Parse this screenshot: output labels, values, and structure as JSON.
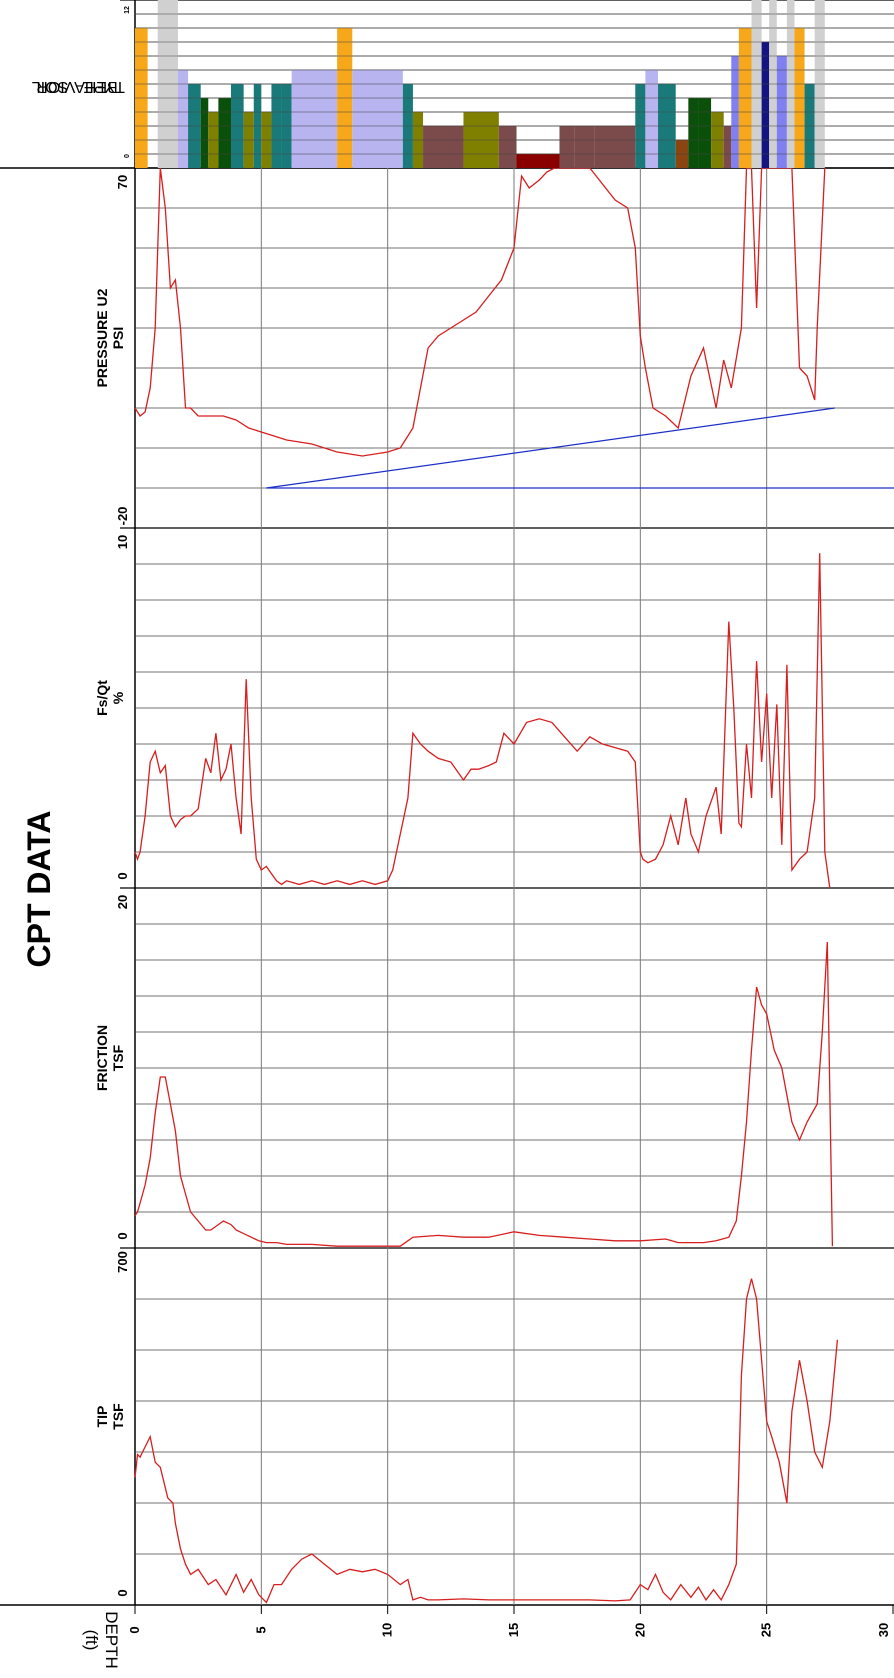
{
  "page_title": "CPT DATA",
  "depth_axis": {
    "label": "DEPTH",
    "unit": "(ft)",
    "min": 0,
    "max": 30,
    "ticks": [
      0,
      5,
      10,
      15,
      20,
      25,
      30
    ]
  },
  "colors": {
    "data_line": "#d81e1e",
    "water_line": "#1c2fc8",
    "grid_major": "#7a7a7a",
    "grid_minor": "#444444"
  },
  "sbt_colors": {
    "1": "#8a0000",
    "2": "#8b4513",
    "3": "#7b4a4a",
    "4": "#808000",
    "5": "#0a4f0a",
    "6": "#1a7a7a",
    "7": "#b8b4f0",
    "8": "#8080f0",
    "9": "#141480",
    "10": "#f7a81a",
    "11": "#9c9c9c",
    "12": "#d0d0d0"
  },
  "chart_data": [
    {
      "type": "line",
      "title": "TIP",
      "unit": "TSF",
      "xlim": [
        0,
        700
      ],
      "tick_min": "0",
      "tick_max": "700",
      "grid_divisions": 7,
      "series": [
        {
          "depth": [
            0.0,
            0.1,
            0.2,
            0.4,
            0.6,
            0.8,
            1.0,
            1.3,
            1.5,
            1.6,
            1.8,
            2.0,
            2.2,
            2.5,
            2.9,
            3.2,
            3.6,
            4.0,
            4.3,
            4.6,
            4.9,
            5.2,
            5.5,
            5.8,
            6.2,
            6.6,
            7.0,
            7.5,
            8.0,
            8.5,
            9.0,
            9.5,
            10.0,
            10.5,
            10.8,
            11.0,
            11.3,
            11.6,
            12.0,
            13.0,
            14.0,
            15.0,
            16.0,
            17.0,
            18.0,
            19.0,
            19.6,
            20.0,
            20.3,
            20.6,
            20.9,
            21.2,
            21.6,
            22.0,
            22.3,
            22.6,
            22.9,
            23.2,
            23.5,
            23.8,
            24.0,
            24.2,
            24.4,
            24.6,
            24.8,
            25.0,
            25.2,
            25.5,
            25.8,
            26.0,
            26.3,
            26.6,
            26.9,
            27.2,
            27.5,
            27.8
          ],
          "values": [
            250,
            295,
            290,
            310,
            330,
            280,
            270,
            210,
            200,
            160,
            110,
            80,
            60,
            70,
            40,
            50,
            20,
            60,
            25,
            50,
            20,
            5,
            40,
            40,
            70,
            90,
            100,
            80,
            60,
            70,
            65,
            70,
            60,
            40,
            50,
            10,
            15,
            10,
            10,
            12,
            10,
            10,
            10,
            10,
            10,
            8,
            10,
            40,
            30,
            60,
            25,
            10,
            40,
            15,
            35,
            10,
            30,
            10,
            40,
            80,
            450,
            600,
            640,
            600,
            480,
            360,
            330,
            280,
            200,
            380,
            480,
            400,
            300,
            270,
            360,
            520
          ]
        }
      ]
    },
    {
      "type": "line",
      "title": "FRICTION",
      "unit": "TSF",
      "xlim": [
        0,
        20
      ],
      "tick_min": "0",
      "tick_max": "20",
      "grid_divisions": 10,
      "series": [
        {
          "depth": [
            0.0,
            0.1,
            0.2,
            0.4,
            0.6,
            0.8,
            1.0,
            1.2,
            1.4,
            1.6,
            1.8,
            2.0,
            2.2,
            2.5,
            2.8,
            3.0,
            3.2,
            3.5,
            3.8,
            4.0,
            4.3,
            4.6,
            4.9,
            5.2,
            5.6,
            6.0,
            7.0,
            8.0,
            9.0,
            10.0,
            10.5,
            11.0,
            12.0,
            13.0,
            14.0,
            15.0,
            16.0,
            17.0,
            18.0,
            19.0,
            20.0,
            21.0,
            21.5,
            22.0,
            22.5,
            23.0,
            23.5,
            23.8,
            24.0,
            24.2,
            24.4,
            24.6,
            24.8,
            25.0,
            25.3,
            25.6,
            26.0,
            26.3,
            26.6,
            27.0,
            27.2,
            27.4,
            27.6
          ],
          "values": [
            1.8,
            2.0,
            2.5,
            3.5,
            5.0,
            7.5,
            9.5,
            9.5,
            8.0,
            6.5,
            4.0,
            3.0,
            2.0,
            1.5,
            1.0,
            1.0,
            1.2,
            1.5,
            1.3,
            1.0,
            0.8,
            0.6,
            0.4,
            0.3,
            0.3,
            0.2,
            0.2,
            0.1,
            0.1,
            0.1,
            0.1,
            0.6,
            0.7,
            0.6,
            0.6,
            0.9,
            0.7,
            0.6,
            0.5,
            0.4,
            0.4,
            0.5,
            0.3,
            0.3,
            0.3,
            0.4,
            0.6,
            1.5,
            4.0,
            7.0,
            11.0,
            14.5,
            13.5,
            13.0,
            11.0,
            10.0,
            7.0,
            6.0,
            7.0,
            8.0,
            12.0,
            17.0,
            0.1
          ]
        }
      ]
    },
    {
      "type": "line",
      "title": "Fs/Qt",
      "unit": "%",
      "xlim": [
        0,
        10
      ],
      "tick_min": "0",
      "tick_max": "10",
      "grid_divisions": 10,
      "series": [
        {
          "depth": [
            0.0,
            0.1,
            0.2,
            0.4,
            0.6,
            0.8,
            1.0,
            1.2,
            1.4,
            1.6,
            1.8,
            2.0,
            2.2,
            2.5,
            2.8,
            3.0,
            3.2,
            3.4,
            3.6,
            3.8,
            4.0,
            4.2,
            4.4,
            4.6,
            4.8,
            5.0,
            5.2,
            5.4,
            5.6,
            5.8,
            6.0,
            6.5,
            7.0,
            7.5,
            8.0,
            8.5,
            9.0,
            9.5,
            10.0,
            10.2,
            10.5,
            10.8,
            11.0,
            11.3,
            11.6,
            12.0,
            12.5,
            13.0,
            13.3,
            13.6,
            14.0,
            14.3,
            14.6,
            15.0,
            15.5,
            16.0,
            16.5,
            17.0,
            17.5,
            18.0,
            18.5,
            19.0,
            19.5,
            19.8,
            20.0,
            20.1,
            20.3,
            20.6,
            20.9,
            21.2,
            21.5,
            21.8,
            22.0,
            22.3,
            22.6,
            23.0,
            23.2,
            23.5,
            23.7,
            23.9,
            24.0,
            24.2,
            24.4,
            24.6,
            24.8,
            25.0,
            25.2,
            25.4,
            25.6,
            25.8,
            26.0,
            26.3,
            26.6,
            26.9,
            27.1,
            27.3,
            27.5
          ],
          "values": [
            1.0,
            0.8,
            1.0,
            2.0,
            3.5,
            3.8,
            3.2,
            3.4,
            2.0,
            1.7,
            1.9,
            2.0,
            2.0,
            2.2,
            3.6,
            3.2,
            4.3,
            3.0,
            3.3,
            4.0,
            2.5,
            1.5,
            5.8,
            2.5,
            0.8,
            0.5,
            0.6,
            0.4,
            0.2,
            0.1,
            0.2,
            0.1,
            0.2,
            0.1,
            0.2,
            0.1,
            0.2,
            0.1,
            0.2,
            0.5,
            1.5,
            2.5,
            4.3,
            4.0,
            3.8,
            3.6,
            3.5,
            3.0,
            3.3,
            3.3,
            3.4,
            3.5,
            4.3,
            4.0,
            4.6,
            4.7,
            4.6,
            4.2,
            3.8,
            4.2,
            4.0,
            3.9,
            3.8,
            3.5,
            1.0,
            0.8,
            0.7,
            0.8,
            1.2,
            2.0,
            1.2,
            2.5,
            1.5,
            1.0,
            2.0,
            2.8,
            1.5,
            7.4,
            5.0,
            1.8,
            1.7,
            4.0,
            2.5,
            6.3,
            3.5,
            5.4,
            2.5,
            5.1,
            1.2,
            6.2,
            0.5,
            0.8,
            1.0,
            2.5,
            9.3,
            1.0,
            0.0
          ]
        }
      ]
    },
    {
      "type": "line",
      "title": "PRESSURE U2",
      "unit": "PSI",
      "xlim": [
        -20,
        70
      ],
      "tick_min": "-20",
      "tick_max": "70",
      "grid_divisions": 9,
      "series": [
        {
          "depth": [
            0.0,
            0.2,
            0.4,
            0.6,
            0.8,
            1.0,
            1.2,
            1.4,
            1.6,
            1.8,
            2.0,
            2.2,
            2.5,
            3.0,
            3.5,
            4.0,
            4.5,
            5.0,
            5.5,
            6.0,
            7.0,
            8.0,
            9.0,
            10.0,
            10.5,
            11.0,
            11.3,
            11.6,
            12.0,
            12.5,
            13.0,
            13.5,
            14.0,
            14.5,
            15.0,
            15.3,
            15.6,
            16.0,
            16.3,
            16.6,
            17.0,
            18.0,
            19.0,
            19.5,
            19.8,
            20.0,
            20.2,
            20.5,
            21.0,
            21.5,
            22.0,
            22.5,
            23.0,
            23.3,
            23.6,
            24.0,
            24.2,
            24.4,
            24.6,
            24.8,
            25.2,
            25.5,
            25.8,
            26.0,
            26.3,
            26.6,
            26.9,
            27.0,
            27.3
          ],
          "values": [
            10,
            8,
            9,
            15,
            30,
            70,
            60,
            40,
            42,
            30,
            10,
            10,
            8,
            8,
            8,
            7,
            5,
            4,
            3,
            2,
            1,
            -1,
            -2,
            -1,
            0,
            5,
            15,
            25,
            28,
            30,
            32,
            34,
            38,
            42,
            50,
            68,
            65,
            67,
            69,
            71,
            75,
            70,
            62,
            60,
            50,
            28,
            20,
            10,
            8,
            5,
            18,
            25,
            10,
            22,
            15,
            30,
            80,
            85,
            35,
            90,
            85,
            83,
            82,
            83,
            20,
            18,
            12,
            30,
            80
          ]
        }
      ]
    },
    {
      "type": "bar",
      "title": "SOIL BEHAVIOR TYPE",
      "xlim": [
        0,
        12
      ],
      "tick_min": "0",
      "tick_max": "12",
      "grid_divisions": 12,
      "intervals": [
        [
          0.0,
          0.5,
          10
        ],
        [
          0.5,
          0.9,
          0
        ],
        [
          0.9,
          1.7,
          12
        ],
        [
          1.7,
          2.1,
          7
        ],
        [
          2.1,
          2.6,
          6
        ],
        [
          2.6,
          2.9,
          5
        ],
        [
          2.9,
          3.3,
          4
        ],
        [
          3.3,
          3.8,
          5
        ],
        [
          3.8,
          4.3,
          6
        ],
        [
          4.3,
          4.7,
          4
        ],
        [
          4.7,
          5.0,
          6
        ],
        [
          5.0,
          5.4,
          4
        ],
        [
          5.4,
          5.8,
          6
        ],
        [
          5.8,
          6.2,
          6
        ],
        [
          6.2,
          8.0,
          7
        ],
        [
          8.0,
          8.6,
          10
        ],
        [
          8.6,
          10.6,
          7
        ],
        [
          10.6,
          11.0,
          6
        ],
        [
          11.0,
          11.4,
          4
        ],
        [
          11.4,
          13.0,
          3
        ],
        [
          13.0,
          14.4,
          4
        ],
        [
          14.4,
          15.1,
          3
        ],
        [
          15.1,
          16.8,
          1
        ],
        [
          16.8,
          17.4,
          3
        ],
        [
          17.4,
          18.2,
          3
        ],
        [
          18.2,
          19.8,
          3
        ],
        [
          19.8,
          20.2,
          6
        ],
        [
          20.2,
          20.7,
          7
        ],
        [
          20.7,
          21.4,
          6
        ],
        [
          21.4,
          21.9,
          2
        ],
        [
          21.9,
          22.3,
          5
        ],
        [
          22.3,
          22.8,
          5
        ],
        [
          22.8,
          23.3,
          4
        ],
        [
          23.3,
          23.6,
          3
        ],
        [
          23.6,
          23.9,
          8
        ],
        [
          23.9,
          24.4,
          10
        ],
        [
          24.4,
          24.8,
          12
        ],
        [
          24.8,
          25.1,
          9
        ],
        [
          25.1,
          25.4,
          12
        ],
        [
          25.4,
          25.8,
          8
        ],
        [
          25.8,
          26.1,
          12
        ],
        [
          26.1,
          26.5,
          10
        ],
        [
          26.5,
          26.9,
          6
        ],
        [
          26.9,
          27.3,
          12
        ],
        [
          27.3,
          28.0,
          0
        ]
      ]
    }
  ],
  "water_line": {
    "depth_top": 5.2,
    "depth_bottom": 27.7,
    "value_top": -10,
    "value_bottom": 10
  }
}
